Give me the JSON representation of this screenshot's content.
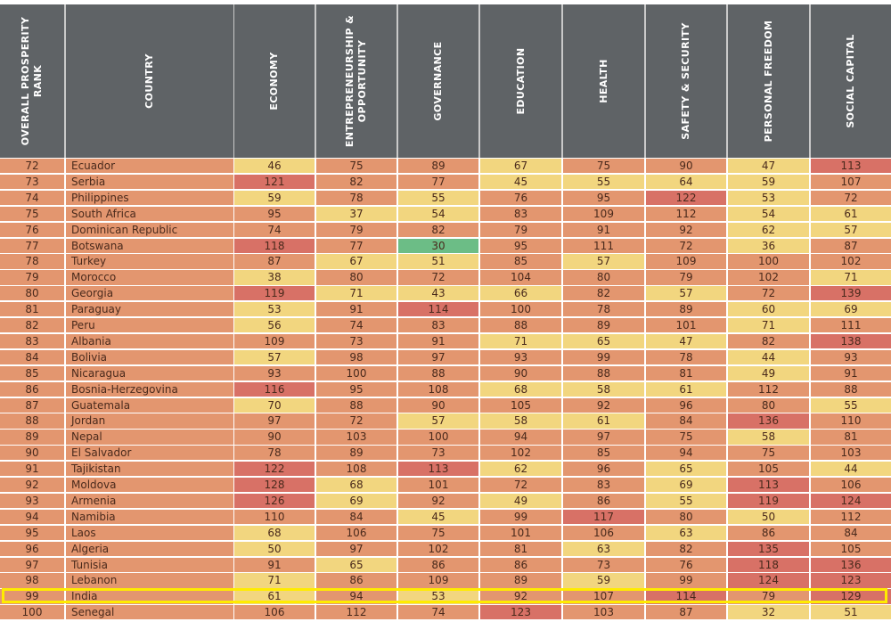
{
  "table": {
    "columns": [
      {
        "key": "rank",
        "label": "OVERALL PROSPERITY\nRANK"
      },
      {
        "key": "country",
        "label": "COUNTRY"
      },
      {
        "key": "economy",
        "label": "ECONOMY"
      },
      {
        "key": "entrepreneurship",
        "label": "ENTREPRENEURSHIP &\nOPPORTUNITY"
      },
      {
        "key": "governance",
        "label": "GOVERNANCE"
      },
      {
        "key": "education",
        "label": "EDUCATION"
      },
      {
        "key": "health",
        "label": "HEALTH"
      },
      {
        "key": "safety",
        "label": "SAFETY & SECURITY"
      },
      {
        "key": "freedom",
        "label": "PERSONAL FREEDOM"
      },
      {
        "key": "social",
        "label": "SOCIAL CAPITAL"
      }
    ],
    "highlighted_country": "India",
    "highlight_color": "#ffec00",
    "colors": {
      "header_bg": "#5f6366",
      "green": "#6cbd86",
      "yellow": "#f2d67f",
      "orange": "#e3966f",
      "red": "#d87166"
    }
  },
  "chart_data": {
    "type": "table",
    "title": "",
    "color_scale": {
      "green": "rank <= 30",
      "yellow": "31-71",
      "orange": "72-112",
      "red": ">= 113"
    },
    "columns": [
      "OVERALL PROSPERITY RANK",
      "COUNTRY",
      "ECONOMY",
      "ENTREPRENEURSHIP & OPPORTUNITY",
      "GOVERNANCE",
      "EDUCATION",
      "HEALTH",
      "SAFETY & SECURITY",
      "PERSONAL FREEDOM",
      "SOCIAL CAPITAL"
    ],
    "rows": [
      {
        "rank": 72,
        "country": "Ecuador",
        "values": [
          46,
          75,
          89,
          67,
          75,
          90,
          47,
          113
        ]
      },
      {
        "rank": 73,
        "country": "Serbia",
        "values": [
          121,
          82,
          77,
          45,
          55,
          64,
          59,
          107
        ]
      },
      {
        "rank": 74,
        "country": "Philippines",
        "values": [
          59,
          78,
          55,
          76,
          95,
          122,
          53,
          72
        ]
      },
      {
        "rank": 75,
        "country": "South Africa",
        "values": [
          95,
          37,
          54,
          83,
          109,
          112,
          54,
          61
        ]
      },
      {
        "rank": 76,
        "country": "Dominican Republic",
        "values": [
          74,
          79,
          82,
          79,
          91,
          92,
          62,
          57
        ]
      },
      {
        "rank": 77,
        "country": "Botswana",
        "values": [
          118,
          77,
          30,
          95,
          111,
          72,
          36,
          87
        ]
      },
      {
        "rank": 78,
        "country": "Turkey",
        "values": [
          87,
          67,
          51,
          85,
          57,
          109,
          100,
          102
        ]
      },
      {
        "rank": 79,
        "country": "Morocco",
        "values": [
          38,
          80,
          72,
          104,
          80,
          79,
          102,
          71
        ]
      },
      {
        "rank": 80,
        "country": "Georgia",
        "values": [
          119,
          71,
          43,
          66,
          82,
          57,
          72,
          139
        ]
      },
      {
        "rank": 81,
        "country": "Paraguay",
        "values": [
          53,
          91,
          114,
          100,
          78,
          89,
          60,
          69
        ]
      },
      {
        "rank": 82,
        "country": "Peru",
        "values": [
          56,
          74,
          83,
          88,
          89,
          101,
          71,
          111
        ]
      },
      {
        "rank": 83,
        "country": "Albania",
        "values": [
          109,
          73,
          91,
          71,
          65,
          47,
          82,
          138
        ]
      },
      {
        "rank": 84,
        "country": "Bolivia",
        "values": [
          57,
          98,
          97,
          93,
          99,
          78,
          44,
          93
        ]
      },
      {
        "rank": 85,
        "country": "Nicaragua",
        "values": [
          93,
          100,
          88,
          90,
          88,
          81,
          49,
          91
        ]
      },
      {
        "rank": 86,
        "country": "Bosnia-Herzegovina",
        "values": [
          116,
          95,
          108,
          68,
          58,
          61,
          112,
          88
        ]
      },
      {
        "rank": 87,
        "country": "Guatemala",
        "values": [
          70,
          88,
          90,
          105,
          92,
          96,
          80,
          55
        ]
      },
      {
        "rank": 88,
        "country": "Jordan",
        "values": [
          97,
          72,
          57,
          58,
          61,
          84,
          136,
          110
        ]
      },
      {
        "rank": 89,
        "country": "Nepal",
        "values": [
          90,
          103,
          100,
          94,
          97,
          75,
          58,
          81
        ]
      },
      {
        "rank": 90,
        "country": "El Salvador",
        "values": [
          78,
          89,
          73,
          102,
          85,
          94,
          75,
          103
        ]
      },
      {
        "rank": 91,
        "country": "Tajikistan",
        "values": [
          122,
          108,
          113,
          62,
          96,
          65,
          105,
          44
        ]
      },
      {
        "rank": 92,
        "country": "Moldova",
        "values": [
          128,
          68,
          101,
          72,
          83,
          69,
          113,
          106
        ]
      },
      {
        "rank": 93,
        "country": "Armenia",
        "values": [
          126,
          69,
          92,
          49,
          86,
          55,
          119,
          124
        ]
      },
      {
        "rank": 94,
        "country": "Namibia",
        "values": [
          110,
          84,
          45,
          99,
          117,
          80,
          50,
          112
        ]
      },
      {
        "rank": 95,
        "country": "Laos",
        "values": [
          68,
          106,
          75,
          101,
          106,
          63,
          86,
          84
        ]
      },
      {
        "rank": 96,
        "country": "Algeria",
        "values": [
          50,
          97,
          102,
          81,
          63,
          82,
          135,
          105
        ]
      },
      {
        "rank": 97,
        "country": "Tunisia",
        "values": [
          91,
          65,
          86,
          86,
          73,
          76,
          118,
          136
        ]
      },
      {
        "rank": 98,
        "country": "Lebanon",
        "values": [
          71,
          86,
          109,
          89,
          59,
          99,
          124,
          123
        ]
      },
      {
        "rank": 99,
        "country": "India",
        "values": [
          61,
          94,
          53,
          92,
          107,
          114,
          79,
          129
        ]
      },
      {
        "rank": 100,
        "country": "Senegal",
        "values": [
          106,
          112,
          74,
          123,
          103,
          87,
          32,
          51
        ]
      }
    ]
  }
}
